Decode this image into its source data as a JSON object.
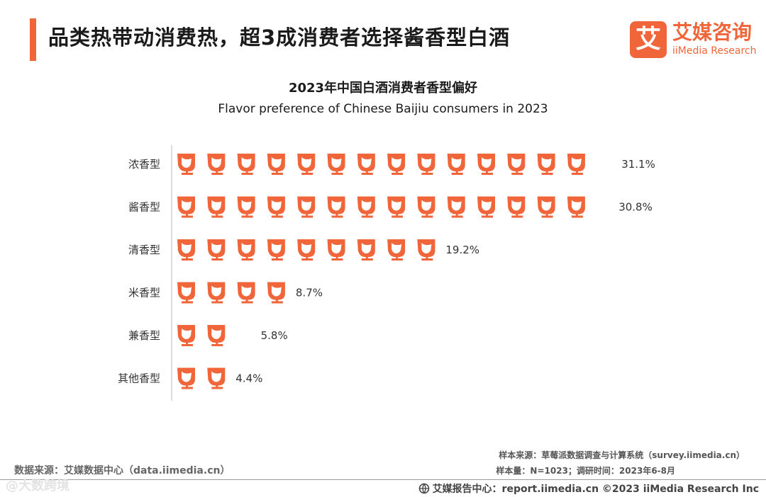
{
  "header": {
    "title": "品类热带动消费热，超3成消费者选择酱香型白酒",
    "logo_mark": "艾",
    "logo_cn": "艾媒咨询",
    "logo_en": "iiMedia Research"
  },
  "colors": {
    "accent": "#f0663a",
    "icon": "#f0663a"
  },
  "icon_name": "wine-glass-icon",
  "chart_data": {
    "type": "bar",
    "title": "2023年中国白酒消费者香型偏好",
    "subtitle": "Flavor preference of Chinese Baijiu consumers in 2023",
    "unit_per_icon": 2.1,
    "categories": [
      "浓香型",
      "酱香型",
      "清香型",
      "米香型",
      "兼香型",
      "其他香型"
    ],
    "values": [
      31.1,
      30.8,
      19.2,
      8.7,
      5.8,
      4.4
    ],
    "labels": [
      "31.1%",
      "30.8%",
      "19.2%",
      "8.7%",
      "5.8%",
      "4.4%"
    ],
    "xlabel": "",
    "ylabel": ""
  },
  "footer": {
    "data_source": "数据来源：艾媒数据中心（data.iimedia.cn）",
    "sample_source": "样本来源：草莓派数据调查与计算系统（survey.iimedia.cn）",
    "sample_size": "样本量：N=1023；调研时间：2023年6-8月",
    "report_center": "艾媒报告中心：report.iimedia.cn  ©2023  iiMedia Research  Inc",
    "watermark": "@大数跨境"
  }
}
